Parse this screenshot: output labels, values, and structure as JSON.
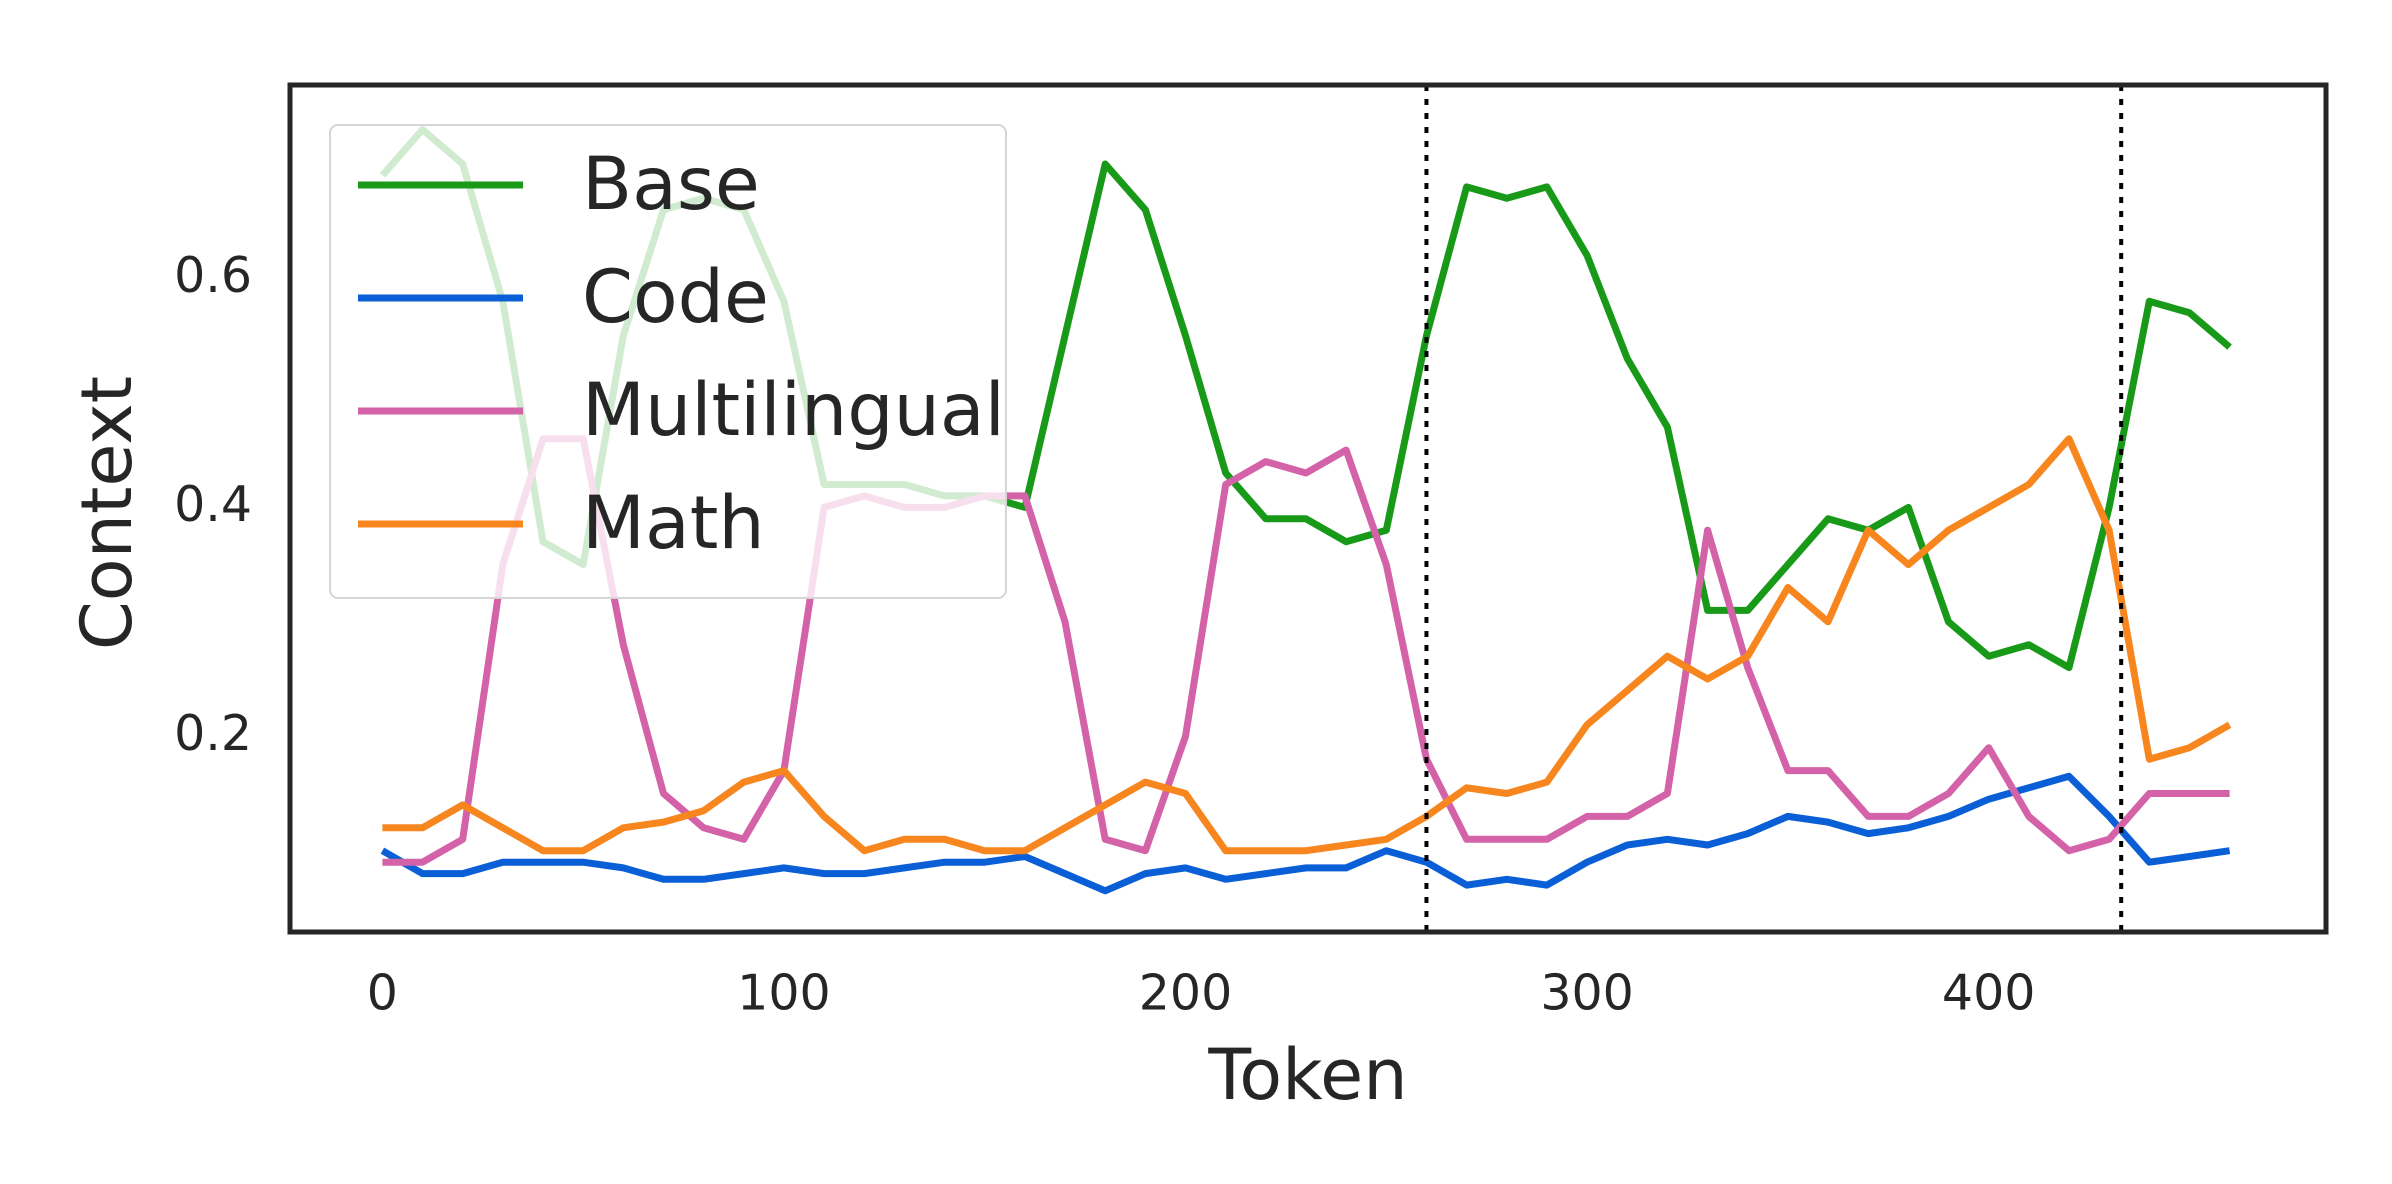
{
  "chart_data": {
    "type": "line",
    "xlabel": "Token",
    "ylabel": "Context",
    "x": [
      0,
      10,
      20,
      30,
      40,
      50,
      60,
      70,
      80,
      90,
      100,
      110,
      120,
      130,
      140,
      150,
      160,
      170,
      180,
      190,
      200,
      210,
      220,
      230,
      240,
      250,
      260,
      270,
      280,
      290,
      300,
      310,
      320,
      330,
      340,
      350,
      360,
      370,
      380,
      390,
      400,
      410,
      420,
      430,
      440,
      450,
      460
    ],
    "series": [
      {
        "name": "Base",
        "color": "#189a18",
        "values": [
          0.69,
          0.73,
          0.7,
          0.58,
          0.37,
          0.35,
          0.55,
          0.66,
          0.67,
          0.66,
          0.58,
          0.42,
          0.42,
          0.42,
          0.41,
          0.41,
          0.4,
          0.55,
          0.7,
          0.66,
          0.55,
          0.43,
          0.39,
          0.39,
          0.37,
          0.38,
          0.55,
          0.68,
          0.67,
          0.68,
          0.62,
          0.53,
          0.47,
          0.31,
          0.31,
          0.35,
          0.39,
          0.38,
          0.4,
          0.3,
          0.27,
          0.28,
          0.26,
          0.4,
          0.58,
          0.57,
          0.54
        ]
      },
      {
        "name": "Code",
        "color": "#0a5fd6",
        "values": [
          0.1,
          0.08,
          0.08,
          0.09,
          0.09,
          0.09,
          0.085,
          0.075,
          0.075,
          0.08,
          0.085,
          0.08,
          0.08,
          0.085,
          0.09,
          0.09,
          0.095,
          0.08,
          0.065,
          0.08,
          0.085,
          0.075,
          0.08,
          0.085,
          0.085,
          0.1,
          0.09,
          0.07,
          0.075,
          0.07,
          0.09,
          0.105,
          0.11,
          0.105,
          0.115,
          0.13,
          0.125,
          0.115,
          0.12,
          0.13,
          0.145,
          0.155,
          0.165,
          0.13,
          0.09,
          0.095,
          0.1
        ]
      },
      {
        "name": "Multilingual",
        "color": "#d462a8",
        "values": [
          0.09,
          0.09,
          0.11,
          0.35,
          0.46,
          0.46,
          0.28,
          0.15,
          0.12,
          0.11,
          0.17,
          0.4,
          0.41,
          0.4,
          0.4,
          0.41,
          0.41,
          0.3,
          0.11,
          0.1,
          0.2,
          0.42,
          0.44,
          0.43,
          0.45,
          0.35,
          0.18,
          0.11,
          0.11,
          0.11,
          0.13,
          0.13,
          0.15,
          0.38,
          0.26,
          0.17,
          0.17,
          0.13,
          0.13,
          0.15,
          0.19,
          0.13,
          0.1,
          0.11,
          0.15,
          0.15,
          0.15
        ]
      },
      {
        "name": "Math",
        "color": "#f7861f",
        "values": [
          0.12,
          0.12,
          0.14,
          0.12,
          0.1,
          0.1,
          0.12,
          0.125,
          0.135,
          0.16,
          0.17,
          0.13,
          0.1,
          0.11,
          0.11,
          0.1,
          0.1,
          0.12,
          0.14,
          0.16,
          0.15,
          0.1,
          0.1,
          0.1,
          0.105,
          0.11,
          0.13,
          0.155,
          0.15,
          0.16,
          0.21,
          0.24,
          0.27,
          0.25,
          0.27,
          0.33,
          0.3,
          0.38,
          0.35,
          0.38,
          0.4,
          0.42,
          0.46,
          0.38,
          0.18,
          0.19,
          0.21
        ]
      }
    ],
    "vlines": [
      260,
      433
    ],
    "xlim": [
      -23,
      484
    ],
    "ylim": [
      0.029,
      0.769
    ],
    "xticks": [
      0,
      100,
      200,
      300,
      400
    ],
    "yticks": [
      0.2,
      0.4,
      0.6
    ],
    "legend": "upper left"
  }
}
